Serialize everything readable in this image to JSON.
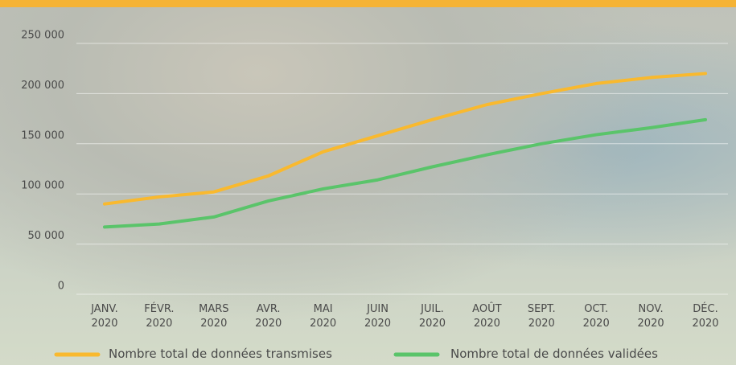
{
  "chart_data": {
    "type": "line",
    "categories": [
      "JANV. 2020",
      "FÉVR. 2020",
      "MARS 2020",
      "AVR. 2020",
      "MAI 2020",
      "JUIN 2020",
      "JUIL. 2020",
      "AOÛT 2020",
      "SEPT. 2020",
      "OCT. 2020",
      "NOV. 2020",
      "DÉC. 2020"
    ],
    "series": [
      {
        "name": "Nombre total de données transmises",
        "color": "#f9b92e",
        "values": [
          90000,
          97000,
          102000,
          118000,
          142000,
          158000,
          174000,
          189000,
          200000,
          210000,
          216000,
          220000
        ]
      },
      {
        "name": "Nombre total de données validées",
        "color": "#5ac46a",
        "values": [
          67000,
          70000,
          77000,
          93000,
          105000,
          114000,
          127000,
          139000,
          150000,
          159000,
          166000,
          174000
        ]
      }
    ],
    "ylim": [
      0,
      250000
    ],
    "yticks": [
      0,
      {
        "value": 50000,
        "label": "50 000"
      },
      {
        "value": 100000,
        "label": "100 000"
      },
      {
        "value": 150000,
        "label": "150 000"
      },
      {
        "value": 200000,
        "label": "200 000"
      },
      {
        "value": 250000,
        "label": "250 000"
      }
    ],
    "grid": true
  }
}
